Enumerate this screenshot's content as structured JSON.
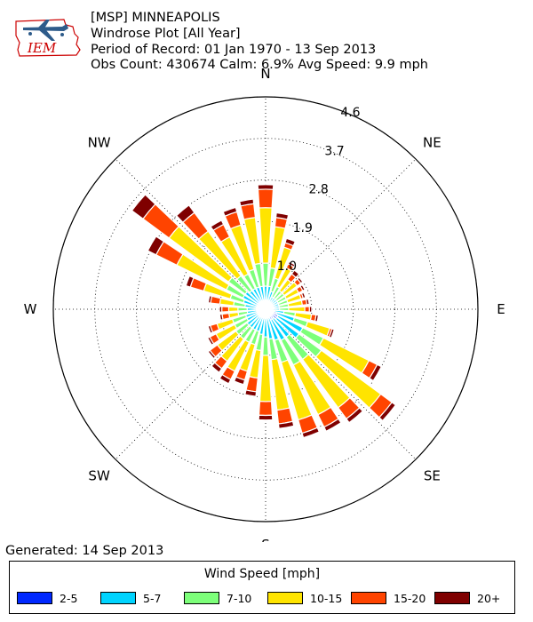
{
  "header": {
    "logo_text": "IEM",
    "line1": "[MSP] MINNEAPOLIS",
    "line2": "Windrose Plot [All Year]",
    "line3": "Period of Record: 01 Jan 1970 - 13 Sep 2013",
    "line4": "Obs Count: 430674 Calm: 6.9% Avg Speed: 9.9 mph"
  },
  "footer": {
    "generated": "Generated: 14 Sep 2013"
  },
  "colors": {
    "2-5": "#0028ff",
    "5-7": "#00d4ff",
    "7-10": "#7dff7a",
    "10-15": "#ffe400",
    "15-20": "#ff4400",
    "20+": "#7f0000"
  },
  "chart_data": {
    "type": "windrose",
    "compass_labels": [
      "N",
      "NE",
      "E",
      "SE",
      "S",
      "SW",
      "W",
      "NW"
    ],
    "rings": [
      1.0,
      1.9,
      2.8,
      3.7,
      4.6
    ],
    "ring_labels": [
      "1.0",
      "1.9",
      "2.8",
      "3.7",
      "4.6"
    ],
    "rmax": 4.6,
    "unit": "percent",
    "legend_title": "Wind Speed [mph]",
    "bins": [
      "2-5",
      "5-7",
      "7-10",
      "10-15",
      "15-20",
      "20+"
    ],
    "directions": [
      0,
      10,
      20,
      30,
      40,
      50,
      60,
      70,
      80,
      90,
      100,
      110,
      120,
      130,
      140,
      150,
      160,
      170,
      180,
      190,
      200,
      210,
      220,
      230,
      240,
      250,
      260,
      270,
      280,
      290,
      300,
      310,
      320,
      330,
      340,
      350
    ],
    "values": [
      [
        0.2,
        0.3,
        0.5,
        1.2,
        0.4,
        0.1
      ],
      [
        0.2,
        0.3,
        0.4,
        0.9,
        0.2,
        0.1
      ],
      [
        0.2,
        0.2,
        0.3,
        0.7,
        0.1,
        0.1
      ],
      [
        0.15,
        0.15,
        0.25,
        0.45,
        0.1,
        0.05
      ],
      [
        0.15,
        0.15,
        0.2,
        0.3,
        0.15,
        0.1
      ],
      [
        0.15,
        0.15,
        0.2,
        0.35,
        0.1,
        0.05
      ],
      [
        0.15,
        0.15,
        0.2,
        0.3,
        0.1,
        0.05
      ],
      [
        0.15,
        0.15,
        0.2,
        0.3,
        0.05,
        0.05
      ],
      [
        0.15,
        0.15,
        0.2,
        0.3,
        0.1,
        0.05
      ],
      [
        0.15,
        0.15,
        0.2,
        0.35,
        0.1,
        0.05
      ],
      [
        0.2,
        0.2,
        0.25,
        0.35,
        0.1,
        0.05
      ],
      [
        0.25,
        0.4,
        0.3,
        0.5,
        0.05,
        0.05
      ],
      [
        0.3,
        0.6,
        0.5,
        1.1,
        0.2,
        0.1
      ],
      [
        0.3,
        0.6,
        0.6,
        1.6,
        0.3,
        0.1
      ],
      [
        0.25,
        0.5,
        0.6,
        1.3,
        0.3,
        0.1
      ],
      [
        0.25,
        0.5,
        0.6,
        1.2,
        0.3,
        0.1
      ],
      [
        0.2,
        0.5,
        0.5,
        1.3,
        0.3,
        0.1
      ],
      [
        0.2,
        0.45,
        0.45,
        1.1,
        0.3,
        0.1
      ],
      [
        0.2,
        0.4,
        0.4,
        1.0,
        0.3,
        0.1
      ],
      [
        0.2,
        0.35,
        0.35,
        0.6,
        0.3,
        0.1
      ],
      [
        0.2,
        0.3,
        0.3,
        0.6,
        0.2,
        0.1
      ],
      [
        0.2,
        0.3,
        0.3,
        0.7,
        0.2,
        0.1
      ],
      [
        0.2,
        0.3,
        0.3,
        0.6,
        0.2,
        0.1
      ],
      [
        0.2,
        0.3,
        0.3,
        0.5,
        0.2,
        0.05
      ],
      [
        0.2,
        0.25,
        0.3,
        0.45,
        0.15,
        0.05
      ],
      [
        0.2,
        0.25,
        0.3,
        0.35,
        0.15,
        0.05
      ],
      [
        0.2,
        0.2,
        0.2,
        0.2,
        0.15,
        0.05
      ],
      [
        0.2,
        0.2,
        0.2,
        0.2,
        0.15,
        0.05
      ],
      [
        0.2,
        0.25,
        0.25,
        0.3,
        0.2,
        0.05
      ],
      [
        0.2,
        0.3,
        0.3,
        0.6,
        0.3,
        0.1
      ],
      [
        0.2,
        0.35,
        0.4,
        1.2,
        0.5,
        0.2
      ],
      [
        0.2,
        0.35,
        0.45,
        1.6,
        0.7,
        0.3
      ],
      [
        0.2,
        0.3,
        0.4,
        1.2,
        0.5,
        0.2
      ],
      [
        0.2,
        0.3,
        0.35,
        0.9,
        0.3,
        0.1
      ],
      [
        0.2,
        0.3,
        0.4,
        1.0,
        0.3,
        0.1
      ],
      [
        0.2,
        0.3,
        0.5,
        1.0,
        0.3,
        0.1
      ]
    ]
  }
}
